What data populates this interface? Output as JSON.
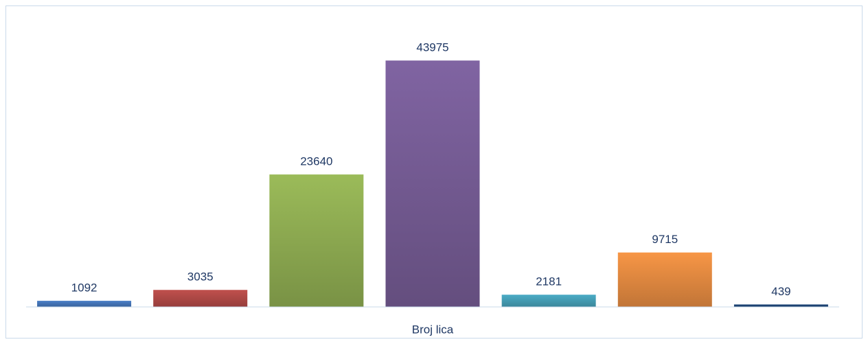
{
  "chart_data": {
    "type": "bar",
    "categories": [
      "Broj lica"
    ],
    "series": [
      {
        "color": "#4a7fc8",
        "values": [
          1092
        ]
      },
      {
        "color": "#c0504d",
        "values": [
          3035
        ]
      },
      {
        "color": "#9bbb59",
        "values": [
          23640
        ]
      },
      {
        "color": "#8064a2",
        "values": [
          43975
        ]
      },
      {
        "color": "#4bacc6",
        "values": [
          2181
        ]
      },
      {
        "color": "#f79646",
        "values": [
          9715
        ]
      },
      {
        "color": "#1f497d",
        "values": [
          439
        ]
      }
    ],
    "ylim": [
      0,
      50000
    ]
  }
}
